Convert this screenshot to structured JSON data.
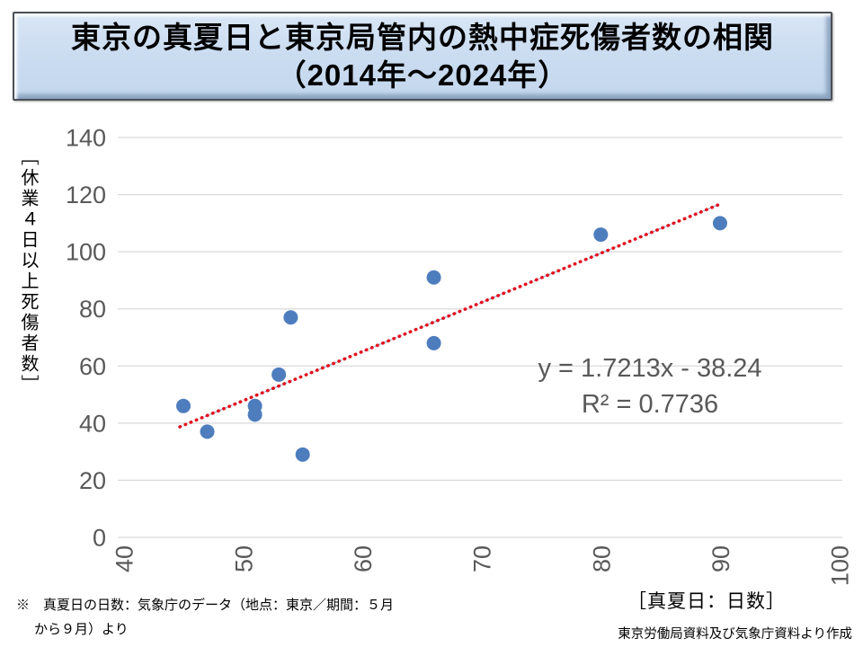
{
  "title": {
    "line1": "東京の真夏日と東京局管内の熱中症死傷者数の相関",
    "line2": "（2014年～2024年）"
  },
  "chart_data": {
    "type": "scatter",
    "title": "東京の真夏日と東京局管内の熱中症死傷者数の相関（2014年～2024年）",
    "xlabel": "［真夏日：日数］",
    "ylabel": "［休業４日以上死傷者数］",
    "xlim": [
      40,
      100
    ],
    "ylim": [
      0,
      140
    ],
    "x_ticks": [
      40,
      50,
      60,
      70,
      80,
      90,
      100
    ],
    "y_ticks": [
      0,
      20,
      40,
      60,
      80,
      100,
      120,
      140
    ],
    "grid": true,
    "legend_position": "none",
    "points": [
      {
        "x": 45,
        "y": 46
      },
      {
        "x": 47,
        "y": 37
      },
      {
        "x": 51,
        "y": 46
      },
      {
        "x": 51,
        "y": 43
      },
      {
        "x": 53,
        "y": 57
      },
      {
        "x": 54,
        "y": 77
      },
      {
        "x": 55,
        "y": 29
      },
      {
        "x": 66,
        "y": 91
      },
      {
        "x": 66,
        "y": 68
      },
      {
        "x": 80,
        "y": 106
      },
      {
        "x": 90,
        "y": 110
      }
    ],
    "trendline": {
      "slope": 1.7213,
      "intercept": -38.24,
      "x_start": 44.7,
      "x_end": 89.9,
      "style": "dotted"
    },
    "equation_line1": "y = 1.7213x - 38.24",
    "equation_line2": "R² = 0.7736",
    "colors": {
      "marker": "#4e7dbe",
      "trend": "#e3101e",
      "trend_under": "#8faadc",
      "grid": "#d9d9d9",
      "tick_label": "#595959"
    }
  },
  "footnote": {
    "line1": "※　真夏日の日数：気象庁のデータ（地点：東京／期間：５月",
    "line2": "から９月）より"
  },
  "credit": "東京労働局資料及び気象庁資料より作成"
}
